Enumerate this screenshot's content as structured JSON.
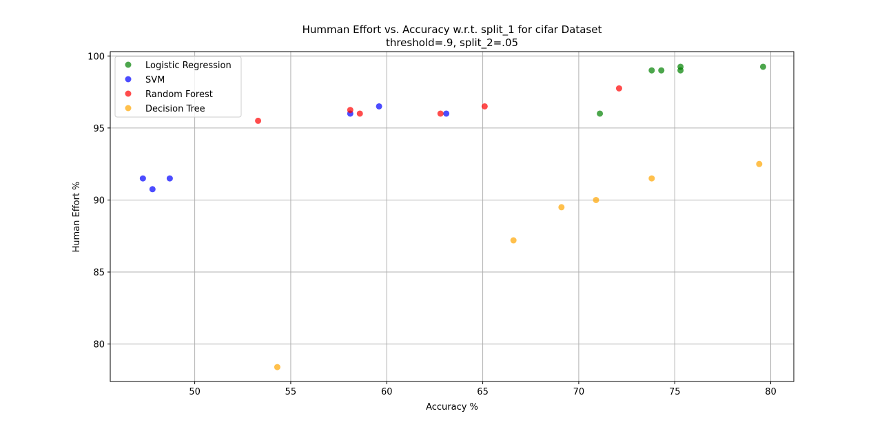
{
  "chart_data": {
    "type": "scatter",
    "title": "Humman Effort vs. Accuracy w.r.t. split_1 for cifar Dataset",
    "subtitle": "threshold=.9, split_2=.05",
    "xlabel": "Accuracy %",
    "ylabel": "Human Effort %",
    "xlim": [
      45.6,
      81.2
    ],
    "ylim": [
      77.4,
      100.3
    ],
    "xticks": [
      50,
      55,
      60,
      65,
      70,
      75,
      80
    ],
    "yticks": [
      80,
      85,
      90,
      95,
      100
    ],
    "grid": true,
    "legend_position": "upper-left",
    "series": [
      {
        "name": "Logistic Regression",
        "color": "#008000",
        "points": [
          [
            71.1,
            96.0
          ],
          [
            73.8,
            99.0
          ],
          [
            74.3,
            99.0
          ],
          [
            75.3,
            99.0
          ],
          [
            75.3,
            99.25
          ],
          [
            79.6,
            99.25
          ]
        ]
      },
      {
        "name": "SVM",
        "color": "#0000ff",
        "points": [
          [
            47.3,
            91.5
          ],
          [
            47.8,
            90.75
          ],
          [
            48.7,
            91.5
          ],
          [
            58.1,
            96.0
          ],
          [
            59.6,
            96.5
          ],
          [
            63.1,
            96.0
          ]
        ]
      },
      {
        "name": "Random Forest",
        "color": "#ff0000",
        "points": [
          [
            53.3,
            95.5
          ],
          [
            58.1,
            96.25
          ],
          [
            58.6,
            96.0
          ],
          [
            62.8,
            96.0
          ],
          [
            65.1,
            96.5
          ],
          [
            72.1,
            97.75
          ]
        ]
      },
      {
        "name": "Decision Tree",
        "color": "#ffa500",
        "points": [
          [
            54.3,
            78.4
          ],
          [
            66.6,
            87.2
          ],
          [
            69.1,
            89.5
          ],
          [
            70.9,
            90.0
          ],
          [
            73.8,
            91.5
          ],
          [
            79.4,
            92.5
          ]
        ]
      }
    ]
  }
}
